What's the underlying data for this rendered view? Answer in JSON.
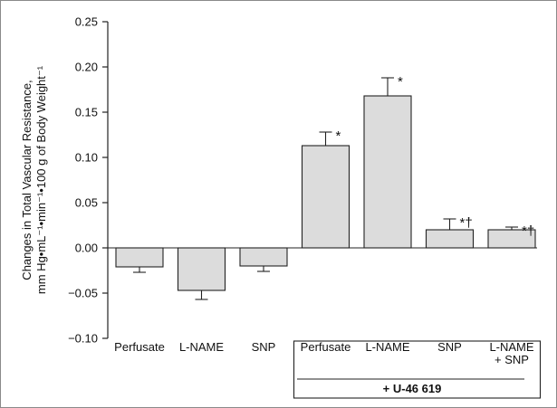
{
  "chart_data": {
    "type": "bar",
    "ylabel_line1": "Changes in Total Vascular Resistance,",
    "ylabel_line2": "mm Hg•mL⁻¹•min⁻¹•100 g of Body Weight⁻¹",
    "ylim": [
      -0.1,
      0.25
    ],
    "yticks": [
      "0.25",
      "0.20",
      "0.15",
      "0.10",
      "0.05",
      "0.00",
      "−0.05",
      "−0.10"
    ],
    "ytick_values": [
      0.25,
      0.2,
      0.15,
      0.1,
      0.05,
      0.0,
      -0.05,
      -0.1
    ],
    "bar_color": "#dcdcdc",
    "bars": [
      {
        "label": [
          "Perfusate"
        ],
        "value": -0.021,
        "error": 0.006,
        "annotation": ""
      },
      {
        "label": [
          "L-NAME"
        ],
        "value": -0.047,
        "error": 0.01,
        "annotation": ""
      },
      {
        "label": [
          "SNP"
        ],
        "value": -0.02,
        "error": 0.006,
        "annotation": ""
      },
      {
        "label": [
          "Perfusate"
        ],
        "value": 0.113,
        "error": 0.015,
        "annotation": "*"
      },
      {
        "label": [
          "L-NAME"
        ],
        "value": 0.168,
        "error": 0.02,
        "annotation": "*"
      },
      {
        "label": [
          "SNP"
        ],
        "value": 0.02,
        "error": 0.012,
        "annotation": "*†"
      },
      {
        "label": [
          "L-NAME",
          "+ SNP"
        ],
        "value": 0.02,
        "error": 0.003,
        "annotation": "*†"
      }
    ],
    "group_label": "+ U-46 619"
  }
}
